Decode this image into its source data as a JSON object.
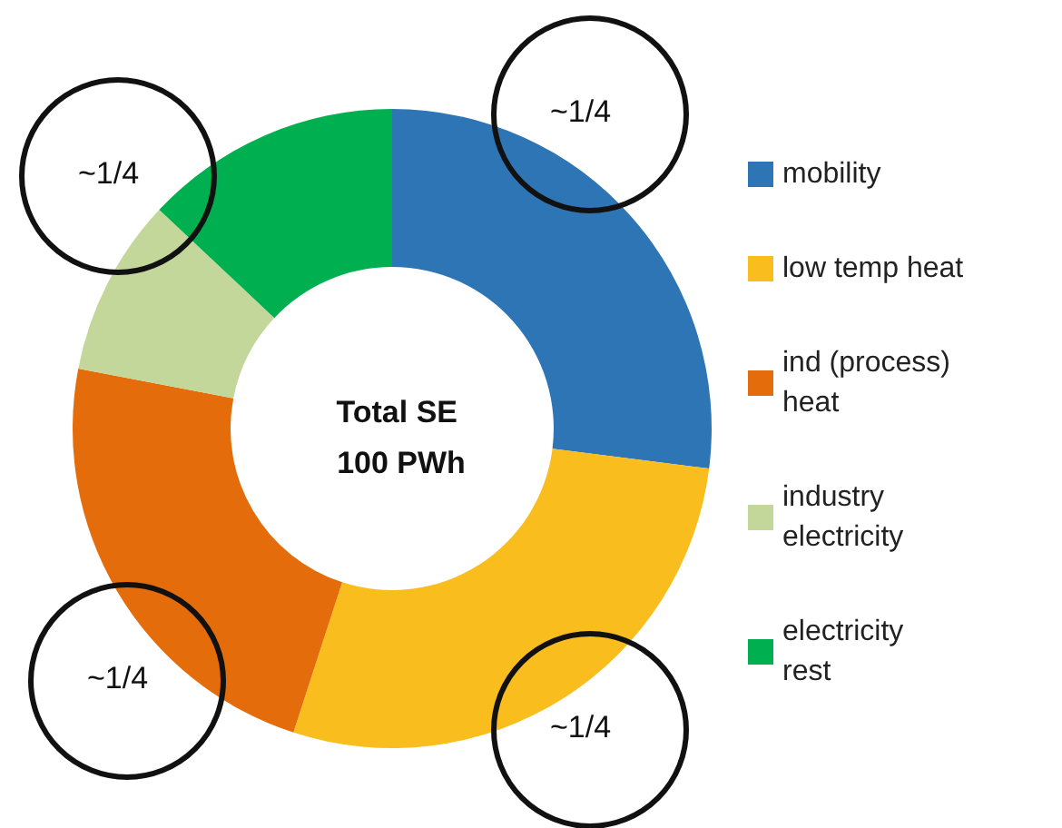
{
  "chart_data": {
    "type": "donut",
    "title": "Total SE 100 PWh",
    "categories": [
      "mobility",
      "low temp heat",
      "ind (process) heat",
      "industry electricity",
      "electricity rest"
    ],
    "values": [
      27,
      28,
      23,
      9,
      13
    ],
    "colors": [
      "#2e75b6",
      "#f9bd1d",
      "#e46c0a",
      "#c4d79b",
      "#00b050"
    ],
    "legend": "right",
    "annotations": [
      "~1/4",
      "~1/4",
      "~1/4",
      "~1/4"
    ]
  }
}
